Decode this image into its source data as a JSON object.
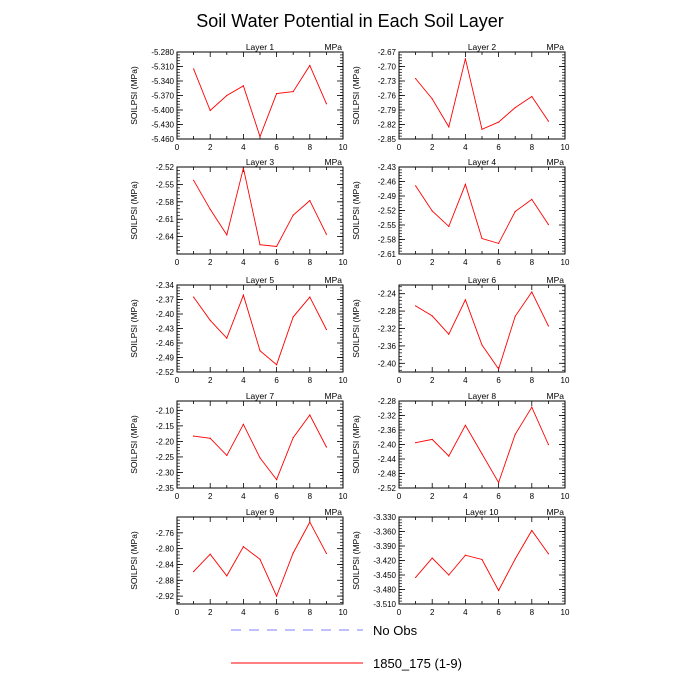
{
  "title": "Soil Water Potential in Each Soil Layer",
  "legend": [
    {
      "label": "No Obs",
      "color": "#8080ff",
      "dash": true
    },
    {
      "label": "1850_175 (1-9)",
      "color": "#ff0000",
      "dash": false
    }
  ],
  "chart_data": [
    {
      "type": "line",
      "title": "Layer 1",
      "units": "MPa",
      "ylabel": "SOILPSI  (MPa)",
      "xlim": [
        0,
        10
      ],
      "xticks": [
        "0",
        "2",
        "4",
        "6",
        "8",
        "10"
      ],
      "ylim": [
        -5.46,
        -5.28
      ],
      "yticks": [
        "-5.280",
        "-5.310",
        "-5.340",
        "-5.370",
        "-5.400",
        "-5.430",
        "-5.460"
      ],
      "series": [
        {
          "color": "#ff0000",
          "x": [
            1,
            2,
            3,
            4,
            5,
            6,
            7,
            8,
            9
          ],
          "y": [
            -5.315,
            -5.401,
            -5.37,
            -5.35,
            -5.455,
            -5.366,
            -5.362,
            -5.308,
            -5.387
          ]
        }
      ]
    },
    {
      "type": "line",
      "title": "Layer 2",
      "units": "MPa",
      "ylabel": "SOILPSI  (MPa)",
      "xlim": [
        0,
        10
      ],
      "xticks": [
        "0",
        "2",
        "4",
        "6",
        "8",
        "10"
      ],
      "ylim": [
        -2.85,
        -2.67
      ],
      "yticks": [
        "-2.67",
        "-2.70",
        "-2.73",
        "-2.76",
        "-2.79",
        "-2.82",
        "-2.85"
      ],
      "series": [
        {
          "color": "#ff0000",
          "x": [
            1,
            2,
            3,
            4,
            5,
            6,
            7,
            8,
            9
          ],
          "y": [
            -2.725,
            -2.767,
            -2.825,
            -2.684,
            -2.83,
            -2.815,
            -2.785,
            -2.762,
            -2.813
          ]
        }
      ]
    },
    {
      "type": "line",
      "title": "Layer 3",
      "units": "MPa",
      "ylabel": "SOILPSI  (MPa)",
      "xlim": [
        0,
        10
      ],
      "xticks": [
        "0",
        "2",
        "4",
        "6",
        "8",
        "10"
      ],
      "ylim": [
        -2.67,
        -2.52
      ],
      "yticks": [
        "-2.52",
        "-2.55",
        "-2.58",
        "-2.61",
        "-2.64"
      ],
      "series": [
        {
          "color": "#ff0000",
          "x": [
            1,
            2,
            3,
            4,
            5,
            6,
            7,
            8,
            9
          ],
          "y": [
            -2.543,
            -2.593,
            -2.637,
            -2.522,
            -2.654,
            -2.657,
            -2.603,
            -2.578,
            -2.636
          ]
        }
      ]
    },
    {
      "type": "line",
      "title": "Layer 4",
      "units": "MPa",
      "ylabel": "SOILPSI  (MPa)",
      "xlim": [
        0,
        10
      ],
      "xticks": [
        "0",
        "2",
        "4",
        "6",
        "8",
        "10"
      ],
      "ylim": [
        -2.61,
        -2.43
      ],
      "yticks": [
        "-2.43",
        "-2.46",
        "-2.49",
        "-2.52",
        "-2.55",
        "-2.58",
        "-2.61"
      ],
      "series": [
        {
          "color": "#ff0000",
          "x": [
            1,
            2,
            3,
            4,
            5,
            6,
            7,
            8,
            9
          ],
          "y": [
            -2.469,
            -2.521,
            -2.553,
            -2.466,
            -2.578,
            -2.588,
            -2.522,
            -2.497,
            -2.549
          ]
        }
      ]
    },
    {
      "type": "line",
      "title": "Layer 5",
      "units": "MPa",
      "ylabel": "SOILPSI  (MPa)",
      "xlim": [
        0,
        10
      ],
      "xticks": [
        "0",
        "2",
        "4",
        "6",
        "8",
        "10"
      ],
      "ylim": [
        -2.52,
        -2.34
      ],
      "yticks": [
        "-2.34",
        "-2.37",
        "-2.40",
        "-2.43",
        "-2.46",
        "-2.49",
        "-2.52"
      ],
      "series": [
        {
          "color": "#ff0000",
          "x": [
            1,
            2,
            3,
            4,
            5,
            6,
            7,
            8,
            9
          ],
          "y": [
            -2.365,
            -2.413,
            -2.45,
            -2.361,
            -2.476,
            -2.505,
            -2.406,
            -2.365,
            -2.432
          ]
        }
      ]
    },
    {
      "type": "line",
      "title": "Layer 6",
      "units": "MPa",
      "ylabel": "SOILPSI  (MPa)",
      "xlim": [
        0,
        10
      ],
      "xticks": [
        "0",
        "2",
        "4",
        "6",
        "8",
        "10"
      ],
      "ylim": [
        -2.42,
        -2.22
      ],
      "yticks": [
        "-2.24",
        "-2.28",
        "-2.32",
        "-2.36",
        "-2.40"
      ],
      "series": [
        {
          "color": "#ff0000",
          "x": [
            1,
            2,
            3,
            4,
            5,
            6,
            7,
            8,
            9
          ],
          "y": [
            -2.268,
            -2.291,
            -2.333,
            -2.254,
            -2.358,
            -2.413,
            -2.292,
            -2.236,
            -2.314
          ]
        }
      ]
    },
    {
      "type": "line",
      "title": "Layer 7",
      "units": "MPa",
      "ylabel": "SOILPSI  (MPa)",
      "xlim": [
        0,
        10
      ],
      "xticks": [
        "0",
        "2",
        "4",
        "6",
        "8",
        "10"
      ],
      "ylim": [
        -2.35,
        -2.07
      ],
      "yticks": [
        "-2.10",
        "-2.15",
        "-2.20",
        "-2.25",
        "-2.30",
        "-2.35"
      ],
      "series": [
        {
          "color": "#ff0000",
          "x": [
            1,
            2,
            3,
            4,
            5,
            6,
            7,
            8,
            9
          ],
          "y": [
            -2.183,
            -2.19,
            -2.245,
            -2.145,
            -2.253,
            -2.323,
            -2.188,
            -2.115,
            -2.218
          ]
        }
      ]
    },
    {
      "type": "line",
      "title": "Layer 8",
      "units": "MPa",
      "ylabel": "SOILPSI  (MPa)",
      "xlim": [
        0,
        10
      ],
      "xticks": [
        "0",
        "2",
        "4",
        "6",
        "8",
        "10"
      ],
      "ylim": [
        -2.52,
        -2.28
      ],
      "yticks": [
        "-2.28",
        "-2.32",
        "-2.36",
        "-2.40",
        "-2.44",
        "-2.48",
        "-2.52"
      ],
      "series": [
        {
          "color": "#ff0000",
          "x": [
            1,
            2,
            3,
            4,
            5,
            6,
            7,
            8,
            9
          ],
          "y": [
            -2.395,
            -2.386,
            -2.432,
            -2.347,
            -2.426,
            -2.505,
            -2.372,
            -2.297,
            -2.4
          ]
        }
      ]
    },
    {
      "type": "line",
      "title": "Layer 9",
      "units": "MPa",
      "ylabel": "SOILPSI  (MPa)",
      "xlim": [
        0,
        10
      ],
      "xticks": [
        "0",
        "2",
        "4",
        "6",
        "8",
        "10"
      ],
      "ylim": [
        -2.94,
        -2.72
      ],
      "yticks": [
        "-2.76",
        "-2.80",
        "-2.84",
        "-2.88",
        "-2.92"
      ],
      "series": [
        {
          "color": "#ff0000",
          "x": [
            1,
            2,
            3,
            4,
            5,
            6,
            7,
            8,
            9
          ],
          "y": [
            -2.858,
            -2.814,
            -2.869,
            -2.795,
            -2.827,
            -2.92,
            -2.811,
            -2.733,
            -2.812
          ]
        }
      ]
    },
    {
      "type": "line",
      "title": "Layer 10",
      "units": "MPa",
      "ylabel": "SOILPSI  (MPa)",
      "xlim": [
        0,
        10
      ],
      "xticks": [
        "0",
        "2",
        "4",
        "6",
        "8",
        "10"
      ],
      "ylim": [
        -3.51,
        -3.33
      ],
      "yticks": [
        "-3.330",
        "-3.360",
        "-3.390",
        "-3.420",
        "-3.450",
        "-3.480",
        "-3.510"
      ],
      "series": [
        {
          "color": "#ff0000",
          "x": [
            1,
            2,
            3,
            4,
            5,
            6,
            7,
            8,
            9
          ],
          "y": [
            -3.455,
            -3.415,
            -3.45,
            -3.409,
            -3.418,
            -3.482,
            -3.417,
            -3.358,
            -3.406
          ]
        }
      ]
    }
  ]
}
